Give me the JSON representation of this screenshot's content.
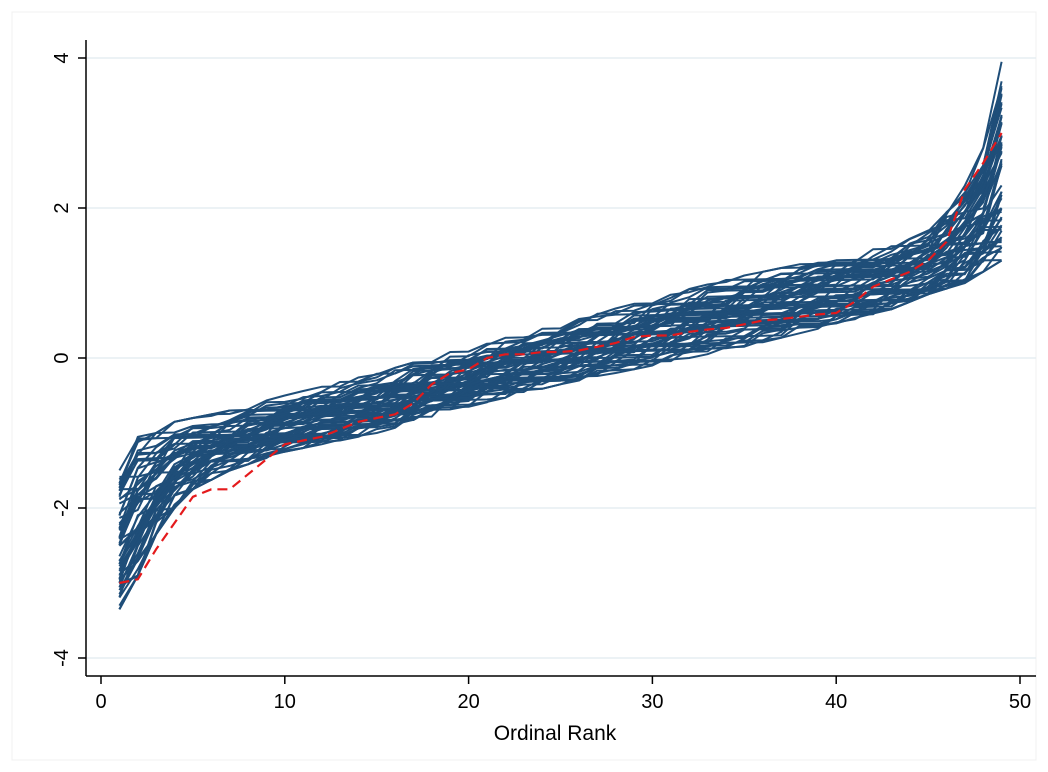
{
  "chart_data": {
    "type": "line",
    "title": "",
    "xlabel": "Ordinal Rank",
    "ylabel": "",
    "xlim": [
      0,
      50
    ],
    "ylim": [
      -4,
      4
    ],
    "x_ticks": [
      0,
      10,
      20,
      30,
      40,
      50
    ],
    "y_ticks": [
      -4,
      -2,
      0,
      2,
      4
    ],
    "x_tick_labels": [
      "0",
      "10",
      "20",
      "30",
      "40",
      "50"
    ],
    "y_tick_labels": [
      "-4",
      "-2",
      "0",
      "2",
      "4"
    ],
    "grid": "horizontal",
    "legend": "none",
    "colors": {
      "simulated": "#1f4e79",
      "observed": "#e41a1c",
      "grid": "#e6eef2",
      "axis": "#000000"
    },
    "simulation": {
      "count": 60,
      "x_start": 1,
      "x_end": 49,
      "quantile_band": {
        "x": [
          1,
          2,
          3,
          4,
          5,
          7,
          10,
          15,
          20,
          25,
          30,
          35,
          40,
          43,
          45,
          47,
          48,
          49
        ],
        "low": [
          -3.35,
          -2.9,
          -2.35,
          -2.0,
          -1.75,
          -1.5,
          -1.25,
          -1.0,
          -0.65,
          -0.35,
          -0.1,
          0.15,
          0.45,
          0.65,
          0.85,
          1.0,
          1.15,
          1.3
        ],
        "high": [
          -1.35,
          -1.05,
          -1.0,
          -0.85,
          -0.8,
          -0.7,
          -0.5,
          -0.2,
          0.15,
          0.45,
          0.8,
          1.1,
          1.35,
          1.5,
          1.7,
          2.3,
          2.8,
          3.95
        ]
      }
    },
    "series": [
      {
        "style": "dashed",
        "x": [
          1,
          2,
          3,
          4,
          5,
          6,
          7,
          8,
          9,
          10,
          11,
          12,
          13,
          14,
          15,
          16,
          17,
          18,
          19,
          20,
          21,
          22,
          23,
          24,
          25,
          26,
          27,
          28,
          29,
          30,
          31,
          32,
          33,
          34,
          35,
          36,
          37,
          38,
          39,
          40,
          41,
          42,
          43,
          44,
          45,
          46,
          47,
          48,
          49
        ],
        "values": [
          -3.0,
          -2.95,
          -2.55,
          -2.2,
          -1.85,
          -1.75,
          -1.75,
          -1.55,
          -1.35,
          -1.15,
          -1.1,
          -1.05,
          -0.95,
          -0.85,
          -0.8,
          -0.75,
          -0.6,
          -0.35,
          -0.2,
          -0.15,
          0.0,
          0.05,
          0.05,
          0.08,
          0.08,
          0.1,
          0.15,
          0.2,
          0.28,
          0.3,
          0.3,
          0.35,
          0.38,
          0.4,
          0.45,
          0.5,
          0.52,
          0.55,
          0.58,
          0.6,
          0.75,
          0.95,
          1.05,
          1.15,
          1.3,
          1.55,
          2.25,
          2.6,
          3.0
        ]
      }
    ]
  }
}
